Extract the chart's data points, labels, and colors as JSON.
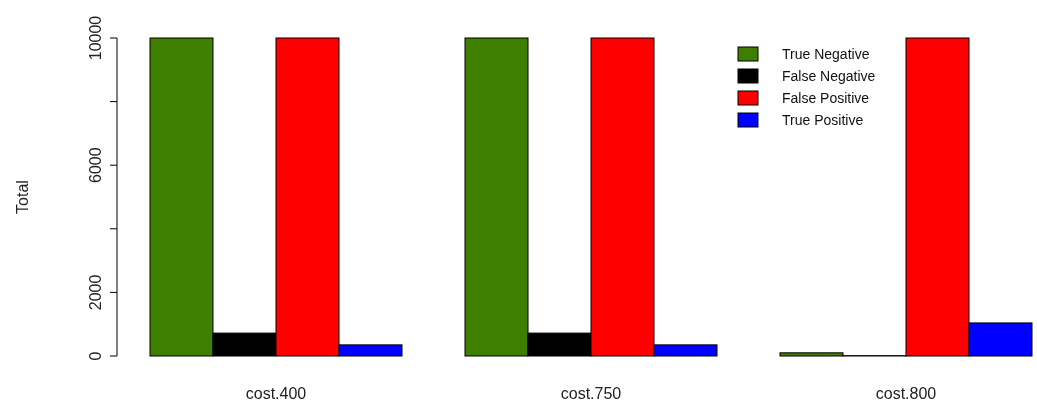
{
  "chart_data": {
    "type": "bar",
    "ylabel": "Total",
    "categories": [
      "cost.400",
      "cost.750",
      "cost.800"
    ],
    "series": [
      {
        "name": "True Negative",
        "color": "#3f7f00",
        "values": [
          10000,
          10000,
          100
        ]
      },
      {
        "name": "False Negative",
        "color": "#000000",
        "values": [
          720,
          720,
          10
        ]
      },
      {
        "name": "False Positive",
        "color": "#ff0000",
        "values": [
          10000,
          10000,
          10000
        ]
      },
      {
        "name": "True Positive",
        "color": "#0000ff",
        "values": [
          350,
          350,
          1040
        ]
      }
    ],
    "ylim": [
      0,
      10000
    ],
    "yticks": [
      0,
      2000,
      {
        "value": 4000,
        "label": null
      },
      6000,
      {
        "value": 8000,
        "label": null
      },
      10000
    ],
    "grid": false,
    "legend": "top right"
  }
}
